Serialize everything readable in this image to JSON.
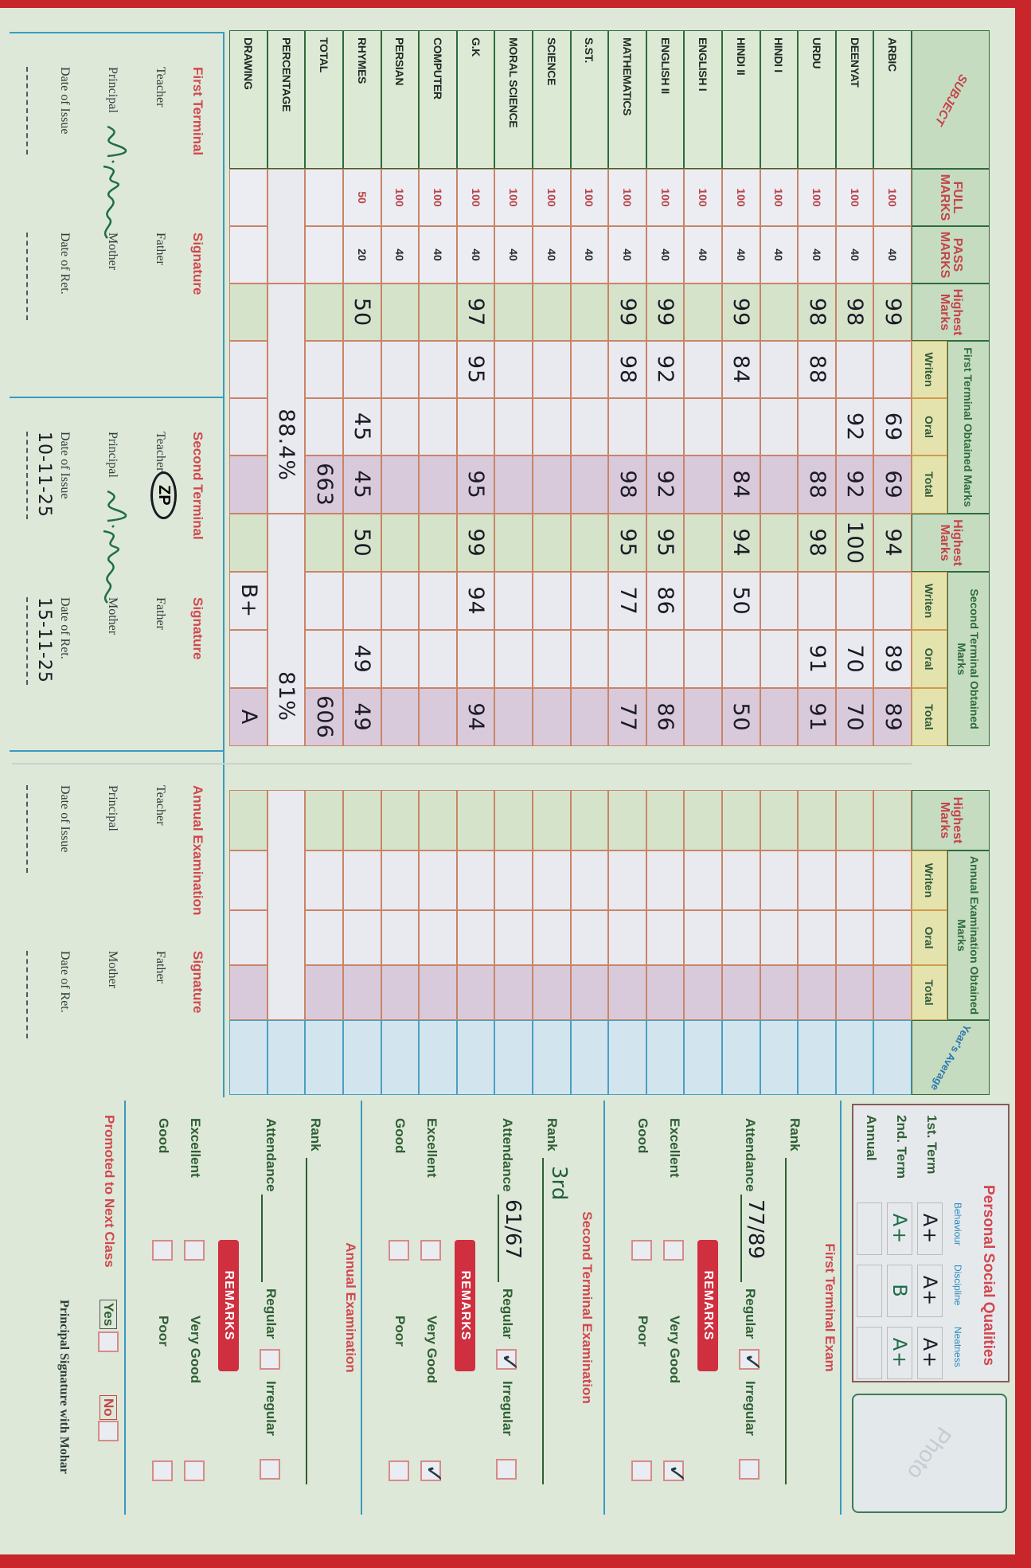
{
  "left_table": {
    "headers": {
      "subject": "SUBJECT",
      "full_marks": "FULL MARKS",
      "pass_marks": "PASS MARKS",
      "highest": "Highest Marks",
      "first_terminal": "First Terminal Obtained Marks",
      "second_terminal": "Second Terminal Obtained Marks",
      "written": "Writen",
      "oral": "Oral",
      "total": "Total"
    },
    "rows": [
      {
        "subject": "ARBIC",
        "full": "100",
        "pass": "40",
        "first": [
          "99",
          "",
          "69",
          "69"
        ],
        "second": [
          "94",
          "",
          "89",
          "89"
        ]
      },
      {
        "subject": "DEENYAT",
        "full": "100",
        "pass": "40",
        "first": [
          "98",
          "",
          "92",
          "92"
        ],
        "second": [
          "100",
          "",
          "70",
          "70"
        ]
      },
      {
        "subject": "URDU",
        "full": "100",
        "pass": "40",
        "first": [
          "98",
          "88",
          "",
          "88"
        ],
        "second": [
          "98",
          "",
          "91",
          "91"
        ]
      },
      {
        "subject": "HINDI I",
        "full": "100",
        "pass": "40",
        "first": [
          "",
          "",
          "",
          ""
        ],
        "second": [
          "",
          "",
          "",
          ""
        ]
      },
      {
        "subject": "HINDI II",
        "full": "100",
        "pass": "40",
        "first": [
          "99",
          "84",
          "",
          "84"
        ],
        "second": [
          "94",
          "50",
          "",
          "50"
        ]
      },
      {
        "subject": "ENGLISH I",
        "full": "100",
        "pass": "40",
        "first": [
          "",
          "",
          "",
          ""
        ],
        "second": [
          "",
          "",
          "",
          ""
        ]
      },
      {
        "subject": "ENGLISH II",
        "full": "100",
        "pass": "40",
        "first": [
          "99",
          "92",
          "",
          "92"
        ],
        "second": [
          "95",
          "86",
          "",
          "86"
        ]
      },
      {
        "subject": "MATHEMATICS",
        "full": "100",
        "pass": "40",
        "first": [
          "99",
          "98",
          "",
          "98"
        ],
        "second": [
          "95",
          "77",
          "",
          "77"
        ]
      },
      {
        "subject": "S.ST.",
        "full": "100",
        "pass": "40",
        "first": [
          "",
          "",
          "",
          ""
        ],
        "second": [
          "",
          "",
          "",
          ""
        ]
      },
      {
        "subject": "SCIENCE",
        "full": "100",
        "pass": "40",
        "first": [
          "",
          "",
          "",
          ""
        ],
        "second": [
          "",
          "",
          "",
          ""
        ]
      },
      {
        "subject": "MORAL SCIENCE",
        "full": "100",
        "pass": "40",
        "first": [
          "",
          "",
          "",
          ""
        ],
        "second": [
          "",
          "",
          "",
          ""
        ]
      },
      {
        "subject": "G.K",
        "full": "100",
        "pass": "40",
        "first": [
          "97",
          "95",
          "",
          "95"
        ],
        "second": [
          "99",
          "94",
          "",
          "94"
        ]
      },
      {
        "subject": "COMPUTER",
        "full": "100",
        "pass": "40",
        "first": [
          "",
          "",
          "",
          ""
        ],
        "second": [
          "",
          "",
          "",
          ""
        ]
      },
      {
        "subject": "PERSIAN",
        "full": "100",
        "pass": "40",
        "first": [
          "",
          "",
          "",
          ""
        ],
        "second": [
          "",
          "",
          "",
          ""
        ]
      },
      {
        "subject": "RHYMES",
        "full": "50",
        "pass": "20",
        "first": [
          "50",
          "",
          "45",
          "45"
        ],
        "second": [
          "50",
          "",
          "49",
          "49"
        ]
      },
      {
        "subject": "TOTAL",
        "full": "",
        "pass": "",
        "first": [
          "",
          "",
          "",
          "663"
        ],
        "second": [
          "",
          "",
          "",
          "606"
        ]
      },
      {
        "subject": "PERCENTAGE",
        "merged": true,
        "first_value": "88.4%",
        "second_value": "81%"
      },
      {
        "subject": "DRAWING",
        "full": "",
        "pass": "",
        "first": [
          "",
          "",
          "",
          ""
        ],
        "second": [
          "",
          "B+",
          "",
          "A"
        ]
      }
    ]
  },
  "right_table": {
    "headers": {
      "highest": "Highest Marks",
      "annual": "Annual Examination Obtained Marks",
      "written": "Writen",
      "oral": "Oral",
      "total": "Total",
      "years_average": "Year's Average"
    }
  },
  "signature_blocks": [
    {
      "title": "First Terminal",
      "signature_label": "Signature",
      "teacher": "Teacher",
      "father": "Father",
      "principal": "Principal",
      "mother": "Mother",
      "date_of_issue_label": "Date of Issue",
      "date_of_issue": "",
      "date_of_ret_label": "Date of Ret.",
      "date_of_ret": "",
      "teacher_initials": "",
      "principal_signed": true
    },
    {
      "title": "Second Terminal",
      "signature_label": "Signature",
      "teacher": "Teacher",
      "father": "Father",
      "principal": "Principal",
      "mother": "Mother",
      "date_of_issue_label": "Date of Issue",
      "date_of_issue": "10-11-25",
      "date_of_ret_label": "Date of Ret.",
      "date_of_ret": "15-11-25",
      "teacher_initials": "ZP",
      "principal_signed": true
    },
    {
      "title": "Annual Examination",
      "signature_label": "Signature",
      "teacher": "Teacher",
      "father": "Father",
      "principal": "Principal",
      "mother": "Mother",
      "date_of_issue_label": "Date of Issue",
      "date_of_issue": "",
      "date_of_ret_label": "Date of Ret.",
      "date_of_ret": "",
      "teacher_initials": "",
      "principal_signed": false
    }
  ],
  "personal_social_qualities": {
    "title": "Personal Social Qualities",
    "columns": [
      "Behaviour",
      "Discipline",
      "Neatness"
    ],
    "rows": [
      {
        "label": "1st. Term",
        "grades": [
          "A+",
          "A+",
          "A+"
        ]
      },
      {
        "label": "2nd. Term",
        "grades": [
          "A+",
          "B",
          "A+"
        ]
      },
      {
        "label": "Annual",
        "grades": [
          "",
          "",
          ""
        ]
      }
    ]
  },
  "photo_label": "Photo",
  "exams": [
    {
      "title": "First Terminal Exam",
      "rank_label": "Rank",
      "rank": "",
      "attendance_label": "Attendance",
      "attendance": "77/89",
      "regular_label": "Regular",
      "regular_checked": true,
      "irregular_label": "Irregular",
      "irregular_checked": false,
      "remarks_label": "REMARKS",
      "remarks": [
        {
          "label": "Excellent",
          "checked": false
        },
        {
          "label": "Very Good",
          "checked": true
        },
        {
          "label": "Good",
          "checked": false
        },
        {
          "label": "Poor",
          "checked": false
        }
      ]
    },
    {
      "title": "Second Terminal Examination",
      "rank_label": "Rank",
      "rank": "3rd",
      "attendance_label": "Attendance",
      "attendance": "61/67",
      "regular_label": "Regular",
      "regular_checked": true,
      "irregular_label": "Irregular",
      "irregular_checked": false,
      "remarks_label": "REMARKS",
      "remarks": [
        {
          "label": "Excellent",
          "checked": false
        },
        {
          "label": "Very Good",
          "checked": true
        },
        {
          "label": "Good",
          "checked": false
        },
        {
          "label": "Poor",
          "checked": false
        }
      ]
    },
    {
      "title": "Annual Examination",
      "rank_label": "Rank",
      "rank": "",
      "attendance_label": "Attendance",
      "attendance": "",
      "regular_label": "Regular",
      "regular_checked": false,
      "irregular_label": "Irregular",
      "irregular_checked": false,
      "remarks_label": "REMARKS",
      "remarks": [
        {
          "label": "Excellent",
          "checked": false
        },
        {
          "label": "Very Good",
          "checked": false
        },
        {
          "label": "Good",
          "checked": false
        },
        {
          "label": "Poor",
          "checked": false
        }
      ]
    }
  ],
  "promotion": {
    "label": "Promoted to Next Class",
    "yes": "Yes",
    "no": "No"
  },
  "principal_signature_label": "Principal Signature with Mohar",
  "colors": {
    "border_red": "#c9262b",
    "paper": "#dde8d8",
    "header_green": "#c6dcc1",
    "total_pink": "#d9cadb",
    "average_blue": "#d2e5ee",
    "remarks_badge": "#cf2f3f"
  }
}
